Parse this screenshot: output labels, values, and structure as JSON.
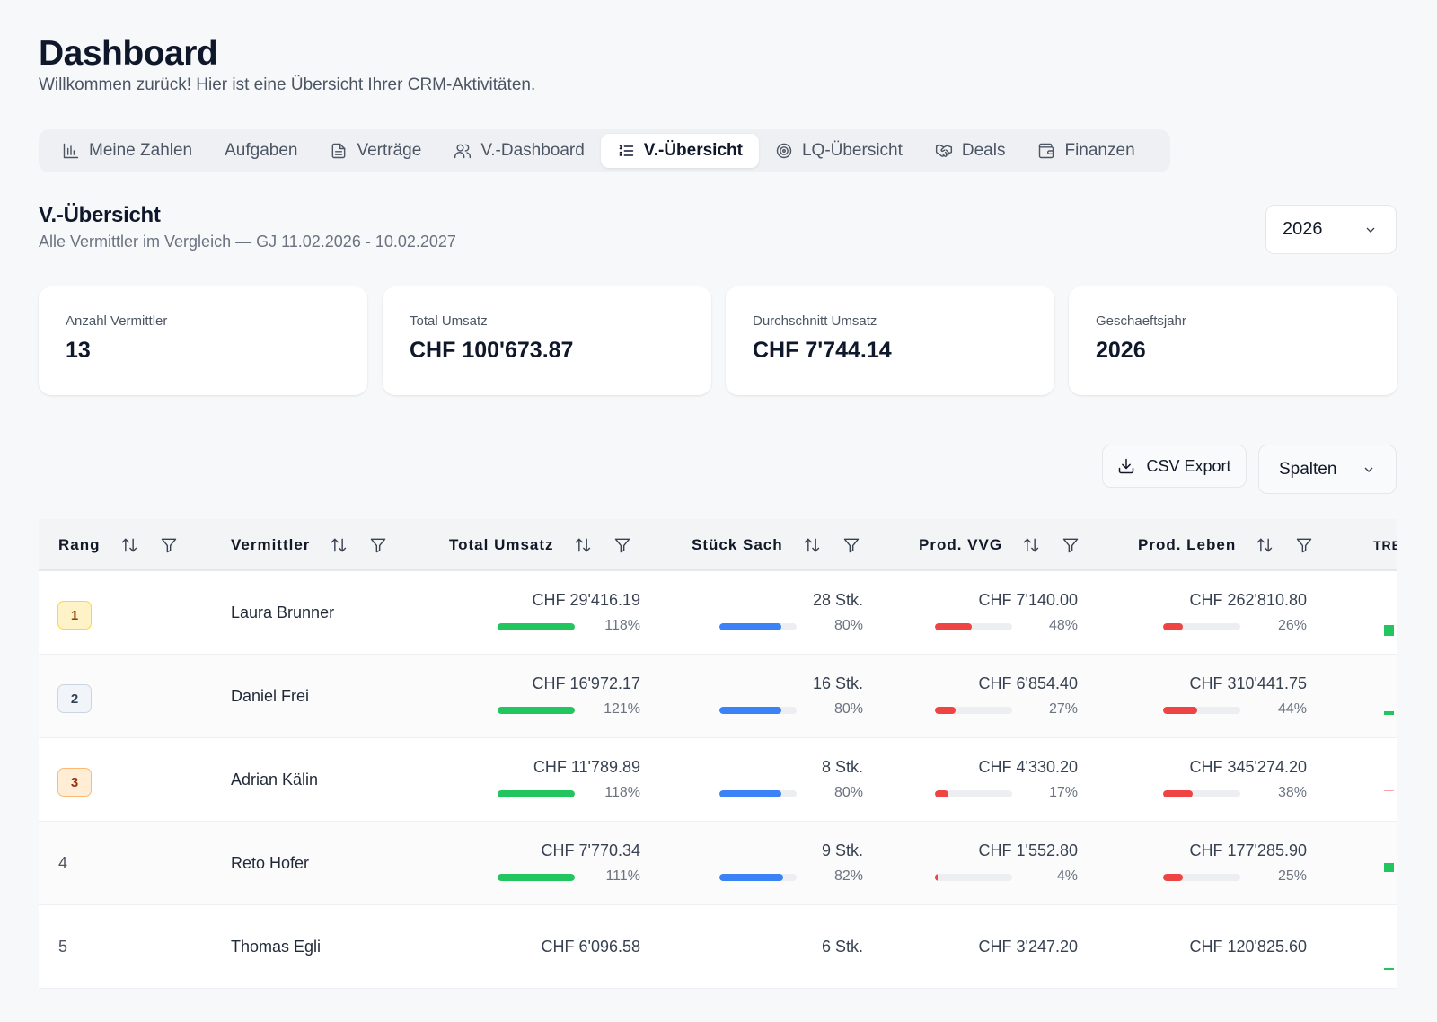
{
  "header": {
    "title": "Dashboard",
    "subtitle": "Willkommen zurück! Hier ist eine Übersicht Ihrer CRM-Aktivitäten."
  },
  "tabs": [
    {
      "label": "Meine Zahlen",
      "icon": "bar-chart-icon",
      "active": false
    },
    {
      "label": "Aufgaben",
      "icon": "",
      "active": false
    },
    {
      "label": "Verträge",
      "icon": "document-icon",
      "active": false
    },
    {
      "label": "V.-Dashboard",
      "icon": "users-icon",
      "active": false
    },
    {
      "label": "V.-Übersicht",
      "icon": "list-ordered-icon",
      "active": true
    },
    {
      "label": "LQ-Übersicht",
      "icon": "target-icon",
      "active": false
    },
    {
      "label": "Deals",
      "icon": "handshake-icon",
      "active": false
    },
    {
      "label": "Finanzen",
      "icon": "wallet-icon",
      "active": false
    }
  ],
  "section": {
    "title": "V.-Übersicht",
    "subtitle": "Alle Vermittler im Vergleich — GJ 11.02.2026 - 10.02.2027",
    "year_select": "2026"
  },
  "stats": [
    {
      "label": "Anzahl Vermittler",
      "value": "13"
    },
    {
      "label": "Total Umsatz",
      "value": "CHF 100'673.87"
    },
    {
      "label": "Durchschnitt Umsatz",
      "value": "CHF 7'744.14"
    },
    {
      "label": "Geschaeftsjahr",
      "value": "2026"
    }
  ],
  "toolbar": {
    "csv_label": "CSV Export",
    "columns_label": "Spalten"
  },
  "table": {
    "columns": [
      "Rang",
      "Vermittler",
      "Total Umsatz",
      "Stück Sach",
      "Prod. VVG",
      "Prod. Leben",
      "TRE"
    ],
    "rows": [
      {
        "rank": "1",
        "name": "Laura Brunner",
        "umsatz": "CHF 29'416.19",
        "umsatz_pct": "118%",
        "umsatz_fill": 1.0,
        "stueck": "28 Stk.",
        "stueck_pct": "80%",
        "stueck_fill": 0.8,
        "vvg": "CHF 7'140.00",
        "vvg_pct": "48%",
        "vvg_fill": 0.48,
        "leben": "CHF 262'810.80",
        "leben_pct": "26%",
        "leben_fill": 0.26
      },
      {
        "rank": "2",
        "name": "Daniel Frei",
        "umsatz": "CHF 16'972.17",
        "umsatz_pct": "121%",
        "umsatz_fill": 1.0,
        "stueck": "16 Stk.",
        "stueck_pct": "80%",
        "stueck_fill": 0.8,
        "vvg": "CHF 6'854.40",
        "vvg_pct": "27%",
        "vvg_fill": 0.27,
        "leben": "CHF 310'441.75",
        "leben_pct": "44%",
        "leben_fill": 0.44
      },
      {
        "rank": "3",
        "name": "Adrian Kälin",
        "umsatz": "CHF 11'789.89",
        "umsatz_pct": "118%",
        "umsatz_fill": 1.0,
        "stueck": "8 Stk.",
        "stueck_pct": "80%",
        "stueck_fill": 0.8,
        "vvg": "CHF 4'330.20",
        "vvg_pct": "17%",
        "vvg_fill": 0.17,
        "leben": "CHF 345'274.20",
        "leben_pct": "38%",
        "leben_fill": 0.38
      },
      {
        "rank": "4",
        "name": "Reto Hofer",
        "umsatz": "CHF 7'770.34",
        "umsatz_pct": "111%",
        "umsatz_fill": 1.0,
        "stueck": "9 Stk.",
        "stueck_pct": "82%",
        "stueck_fill": 0.82,
        "vvg": "CHF 1'552.80",
        "vvg_pct": "4%",
        "vvg_fill": 0.04,
        "leben": "CHF 177'285.90",
        "leben_pct": "25%",
        "leben_fill": 0.25
      },
      {
        "rank": "5",
        "name": "Thomas Egli",
        "umsatz": "CHF 6'096.58",
        "umsatz_pct": "",
        "umsatz_fill": 0,
        "stueck": "6 Stk.",
        "stueck_pct": "",
        "stueck_fill": 0,
        "vvg": "CHF 3'247.20",
        "vvg_pct": "",
        "vvg_fill": 0,
        "leben": "CHF 120'825.60",
        "leben_pct": "",
        "leben_fill": 0
      }
    ]
  },
  "colors": {
    "green": "#22c55e",
    "blue": "#3b82f6",
    "red": "#ef4444",
    "gold_bg": "#fef3c7",
    "gold_border": "#fcd34d",
    "gold_text": "#92400e",
    "silver_bg": "#f1f5f9",
    "silver_border": "#cbd5e1",
    "silver_text": "#334155",
    "bronze_bg": "#ffedd5",
    "bronze_border": "#fdba74",
    "bronze_text": "#9a3412"
  }
}
